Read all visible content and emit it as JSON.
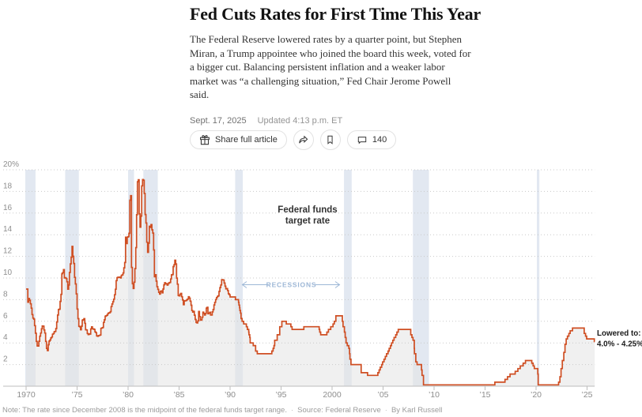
{
  "article": {
    "headline": "Fed Cuts Rates for First Time This Year",
    "summary": "The Federal Reserve lowered rates by a quarter point, but Stephen Miran, a Trump appointee who joined the board this week, voted for a bigger cut. Balancing persistent inflation and a weaker labor market was “a challenging situation,” Fed Chair Jerome Powell said.",
    "date": "Sept. 17, 2025",
    "updated": "Updated 4:13 p.m. ET",
    "share_label": "Share full article",
    "comment_count": "140"
  },
  "chart_data": {
    "type": "line",
    "title": "Federal funds target rate",
    "title_lines": [
      "Federal funds",
      "target rate"
    ],
    "recessions_label": "RECESSIONS",
    "annotation_lowered": [
      "Lowered to:",
      "4.0% - 4.25%"
    ],
    "xlim": [
      1970,
      2025.75
    ],
    "ylim": [
      0,
      20
    ],
    "grid": true,
    "x_ticks": [
      {
        "year": 1970,
        "label": "1970"
      },
      {
        "year": 1975,
        "label": "’75"
      },
      {
        "year": 1980,
        "label": "’80"
      },
      {
        "year": 1985,
        "label": "’85"
      },
      {
        "year": 1990,
        "label": "’90"
      },
      {
        "year": 1995,
        "label": "’95"
      },
      {
        "year": 2000,
        "label": "2000"
      },
      {
        "year": 2005,
        "label": "’05"
      },
      {
        "year": 2010,
        "label": "’10"
      },
      {
        "year": 2015,
        "label": "’15"
      },
      {
        "year": 2020,
        "label": "’20"
      },
      {
        "year": 2025,
        "label": "’25"
      }
    ],
    "y_ticks": [
      {
        "value": 2,
        "label": "2"
      },
      {
        "value": 4,
        "label": "4"
      },
      {
        "value": 6,
        "label": "6"
      },
      {
        "value": 8,
        "label": "8"
      },
      {
        "value": 10,
        "label": "10"
      },
      {
        "value": 12,
        "label": "12"
      },
      {
        "value": 14,
        "label": "14"
      },
      {
        "value": 16,
        "label": "16"
      },
      {
        "value": 18,
        "label": "18"
      },
      {
        "value": 20,
        "label": "20%"
      }
    ],
    "recessions": [
      [
        1969.92,
        1970.92
      ],
      [
        1973.83,
        1975.17
      ],
      [
        1980.0,
        1980.58
      ],
      [
        1981.5,
        1982.92
      ],
      [
        1990.5,
        1991.25
      ],
      [
        2001.17,
        2001.92
      ],
      [
        2007.92,
        2009.5
      ],
      [
        2020.08,
        2020.33
      ]
    ],
    "series": {
      "monthly_effective": {
        "start_year": 1970,
        "end_year": 1989,
        "values": [
          8.98,
          8.98,
          7.76,
          8.1,
          7.95,
          7.61,
          7.21,
          6.62,
          6.29,
          6.2,
          5.6,
          4.9,
          4.14,
          3.72,
          3.71,
          4.15,
          4.63,
          4.91,
          5.31,
          5.57,
          5.55,
          5.2,
          4.91,
          4.14,
          3.5,
          3.29,
          3.83,
          4.17,
          4.27,
          4.46,
          4.55,
          4.8,
          4.87,
          5.04,
          5.06,
          5.33,
          5.94,
          6.58,
          7.09,
          7.12,
          7.84,
          8.49,
          10.4,
          10.5,
          10.78,
          10.01,
          10.03,
          9.95,
          9.65,
          8.97,
          9.35,
          10.51,
          11.31,
          11.93,
          12.92,
          12.01,
          11.34,
          10.06,
          9.45,
          8.53,
          7.13,
          6.24,
          5.54,
          5.49,
          5.22,
          5.55,
          6.1,
          6.14,
          6.24,
          5.82,
          5.22,
          5.2,
          4.87,
          4.77,
          4.84,
          4.82,
          5.29,
          5.48,
          5.31,
          5.29,
          5.25,
          5.02,
          4.95,
          4.65,
          4.61,
          4.68,
          4.69,
          4.73,
          5.35,
          5.39,
          5.42,
          5.9,
          6.14,
          6.47,
          6.51,
          6.56,
          6.7,
          6.78,
          6.79,
          6.89,
          7.36,
          7.6,
          7.81,
          8.04,
          8.45,
          8.96,
          9.76,
          10.03,
          10.07,
          10.06,
          10.09,
          10.01,
          10.24,
          10.29,
          10.47,
          10.94,
          11.43,
          13.77,
          13.18,
          13.78,
          13.82,
          14.13,
          17.19,
          17.61,
          10.98,
          9.47,
          9.03,
          9.61,
          10.87,
          12.81,
          15.85,
          18.9,
          19.08,
          15.93,
          14.7,
          15.72,
          18.52,
          19.1,
          19.04,
          17.82,
          15.87,
          15.08,
          13.31,
          12.37,
          13.22,
          14.78,
          14.68,
          14.94,
          14.45,
          14.15,
          12.59,
          10.12,
          10.31,
          9.71,
          9.2,
          8.95,
          8.68,
          8.51,
          8.77,
          8.8,
          8.63,
          8.98,
          9.37,
          9.56,
          9.45,
          9.48,
          9.34,
          9.47,
          9.56,
          9.59,
          9.91,
          10.29,
          10.32,
          11.06,
          11.23,
          11.64,
          11.3,
          9.99,
          9.43,
          8.38,
          8.35,
          8.5,
          8.58,
          8.27,
          7.97,
          7.53,
          7.88,
          7.9,
          7.92,
          7.99,
          8.05,
          8.27,
          8.14,
          7.86,
          7.48,
          6.99,
          6.85,
          6.92,
          6.56,
          6.17,
          5.89,
          5.85,
          6.04,
          6.91,
          6.43,
          6.1,
          6.13,
          6.37,
          6.85,
          6.73,
          6.58,
          6.73,
          7.22,
          7.29,
          6.69,
          6.77,
          6.83,
          6.58,
          6.58,
          6.87,
          7.09,
          7.51,
          7.75,
          8.01,
          8.19,
          8.3,
          8.35,
          8.76,
          9.12,
          9.36,
          9.85,
          9.84,
          9.81,
          9.53,
          9.24,
          8.99,
          9.02,
          8.84,
          8.55,
          8.45
        ]
      },
      "target_steps": [
        [
          1990.0,
          8.25
        ],
        [
          1990.53,
          8.0
        ],
        [
          1990.83,
          7.75
        ],
        [
          1990.87,
          7.5
        ],
        [
          1990.93,
          7.25
        ],
        [
          1990.96,
          7.0
        ],
        [
          1991.02,
          6.75
        ],
        [
          1991.08,
          6.25
        ],
        [
          1991.18,
          6.0
        ],
        [
          1991.33,
          5.75
        ],
        [
          1991.6,
          5.5
        ],
        [
          1991.7,
          5.25
        ],
        [
          1991.83,
          5.0
        ],
        [
          1991.85,
          4.75
        ],
        [
          1991.93,
          4.5
        ],
        [
          1991.97,
          4.0
        ],
        [
          1992.27,
          3.75
        ],
        [
          1992.5,
          3.25
        ],
        [
          1992.67,
          3.0
        ],
        [
          1994.09,
          3.25
        ],
        [
          1994.22,
          3.5
        ],
        [
          1994.3,
          3.75
        ],
        [
          1994.37,
          4.25
        ],
        [
          1994.62,
          4.75
        ],
        [
          1994.87,
          5.5
        ],
        [
          1995.08,
          6.0
        ],
        [
          1995.51,
          5.75
        ],
        [
          1995.96,
          5.5
        ],
        [
          1996.08,
          5.25
        ],
        [
          1997.23,
          5.5
        ],
        [
          1998.74,
          5.25
        ],
        [
          1998.79,
          5.0
        ],
        [
          1998.88,
          4.75
        ],
        [
          1999.49,
          5.0
        ],
        [
          1999.64,
          5.25
        ],
        [
          1999.87,
          5.5
        ],
        [
          2000.09,
          5.75
        ],
        [
          2000.22,
          6.0
        ],
        [
          2000.37,
          6.5
        ],
        [
          2001.01,
          6.0
        ],
        [
          2001.08,
          5.5
        ],
        [
          2001.21,
          5.0
        ],
        [
          2001.29,
          4.5
        ],
        [
          2001.37,
          4.0
        ],
        [
          2001.49,
          3.75
        ],
        [
          2001.64,
          3.5
        ],
        [
          2001.71,
          3.0
        ],
        [
          2001.75,
          2.5
        ],
        [
          2001.85,
          2.0
        ],
        [
          2002.85,
          1.25
        ],
        [
          2003.48,
          1.0
        ],
        [
          2004.49,
          1.25
        ],
        [
          2004.61,
          1.5
        ],
        [
          2004.72,
          1.75
        ],
        [
          2004.86,
          2.0
        ],
        [
          2004.95,
          2.25
        ],
        [
          2005.09,
          2.5
        ],
        [
          2005.22,
          2.75
        ],
        [
          2005.34,
          3.0
        ],
        [
          2005.49,
          3.25
        ],
        [
          2005.6,
          3.5
        ],
        [
          2005.72,
          3.75
        ],
        [
          2005.83,
          4.0
        ],
        [
          2005.95,
          4.25
        ],
        [
          2006.08,
          4.5
        ],
        [
          2006.24,
          4.75
        ],
        [
          2006.36,
          5.0
        ],
        [
          2006.49,
          5.25
        ],
        [
          2007.71,
          4.75
        ],
        [
          2007.83,
          4.5
        ],
        [
          2007.94,
          4.25
        ],
        [
          2008.06,
          3.5
        ],
        [
          2008.08,
          3.0
        ],
        [
          2008.21,
          2.25
        ],
        [
          2008.33,
          2.0
        ],
        [
          2008.77,
          1.5
        ],
        [
          2008.82,
          1.0
        ],
        [
          2008.96,
          0.125
        ],
        [
          2015.96,
          0.375
        ],
        [
          2016.95,
          0.625
        ],
        [
          2017.2,
          0.875
        ],
        [
          2017.45,
          1.125
        ],
        [
          2017.95,
          1.375
        ],
        [
          2018.22,
          1.625
        ],
        [
          2018.45,
          1.875
        ],
        [
          2018.74,
          2.125
        ],
        [
          2018.96,
          2.375
        ],
        [
          2019.58,
          2.125
        ],
        [
          2019.71,
          1.875
        ],
        [
          2019.83,
          1.625
        ],
        [
          2020.17,
          1.125
        ],
        [
          2020.21,
          0.125
        ],
        [
          2022.21,
          0.375
        ],
        [
          2022.34,
          0.875
        ],
        [
          2022.45,
          1.625
        ],
        [
          2022.57,
          2.375
        ],
        [
          2022.72,
          3.125
        ],
        [
          2022.84,
          3.875
        ],
        [
          2022.95,
          4.375
        ],
        [
          2023.08,
          4.625
        ],
        [
          2023.22,
          4.875
        ],
        [
          2023.34,
          5.125
        ],
        [
          2023.57,
          5.375
        ],
        [
          2024.72,
          4.875
        ],
        [
          2024.85,
          4.625
        ],
        [
          2024.96,
          4.375
        ],
        [
          2025.71,
          4.125
        ]
      ]
    },
    "colors": {
      "line": "#cf4e22",
      "recession_band": "#e2e8f1",
      "area_fill": "rgba(228,228,228,0.55)",
      "grid": "#c9c9c9",
      "axis": "#bdbdbd",
      "axis_text": "#8e8e8e",
      "annotation_blue": "#9db7d6",
      "annotation_dark": "#1a1a1a"
    },
    "legend_position": "none"
  },
  "footer": {
    "note": "Note: The rate since December 2008 is the midpoint of the federal funds target range.",
    "separator": "·",
    "source": "Source: Federal Reserve",
    "byline": "By Karl Russell"
  }
}
